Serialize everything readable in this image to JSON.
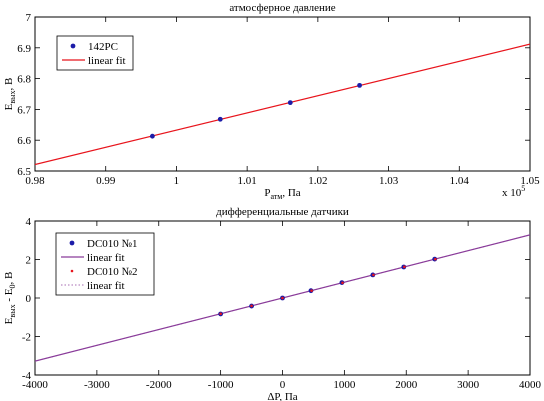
{
  "colors": {
    "fit_red": "#e8141c",
    "fit_purple": "#8a3c9a",
    "marker_navy": "#1c1ca8",
    "marker_red": "#e8141c",
    "axis": "#000000",
    "background": "#ffffff"
  },
  "chart_data": [
    {
      "type": "scatter",
      "title": "атмосферное давление",
      "xlabel": {
        "main": "P",
        "sub": "атм",
        "rest": ", Па"
      },
      "ylabel": {
        "main": "E",
        "sub": "вых",
        "rest": ", В"
      },
      "xlim": [
        0.98,
        1.05
      ],
      "ylim": [
        6.5,
        7.0
      ],
      "x_ticks": [
        0.98,
        0.99,
        1.0,
        1.01,
        1.02,
        1.03,
        1.04,
        1.05
      ],
      "x_tick_labels": [
        "0.98",
        "0.99",
        "1",
        "1.01",
        "1.02",
        "1.03",
        "1.04",
        "1.05"
      ],
      "y_ticks": [
        6.5,
        6.6,
        6.7,
        6.8,
        6.9,
        7.0
      ],
      "y_tick_labels": [
        "6.5",
        "6.6",
        "6.7",
        "6.8",
        "6.9",
        "7"
      ],
      "x_multiplier": {
        "base": "x 10",
        "exp": "5"
      },
      "grid": false,
      "legend_position": "top-left",
      "series": [
        {
          "name": "142PC",
          "kind": "markers",
          "color": "#1c1ca8",
          "points": [
            [
              0.9966,
              6.613
            ],
            [
              1.0062,
              6.668
            ],
            [
              1.0161,
              6.722
            ],
            [
              1.0259,
              6.778
            ]
          ]
        },
        {
          "name": "linear fit",
          "kind": "line",
          "color": "#e8141c",
          "points": [
            [
              0.98,
              6.521
            ],
            [
              1.05,
              6.912
            ]
          ]
        }
      ]
    },
    {
      "type": "scatter",
      "title": "дифференциальные датчики",
      "xlabel": {
        "main": "ΔP, Па"
      },
      "ylabel": {
        "main": "E",
        "sub": "вых",
        "mid": " - E",
        "sub2": "0",
        "rest": ", В"
      },
      "xlim": [
        -4000,
        4000
      ],
      "ylim": [
        -4,
        4
      ],
      "x_ticks": [
        -4000,
        -3000,
        -2000,
        -1000,
        0,
        1000,
        2000,
        3000,
        4000
      ],
      "x_tick_labels": [
        "-4000",
        "-3000",
        "-2000",
        "-1000",
        "0",
        "1000",
        "2000",
        "3000",
        "4000"
      ],
      "y_ticks": [
        -4,
        -2,
        0,
        2,
        4
      ],
      "y_tick_labels": [
        "-4",
        "-2",
        "0",
        "2",
        "4"
      ],
      "grid": false,
      "legend_position": "top-left",
      "series": [
        {
          "name": "DC010 №1",
          "kind": "markers",
          "color": "#1c1ca8",
          "points": [
            [
              -1000,
              -0.83
            ],
            [
              -500,
              -0.42
            ],
            [
              0,
              0.0
            ],
            [
              460,
              0.38
            ],
            [
              960,
              0.8
            ],
            [
              1460,
              1.2
            ],
            [
              1960,
              1.61
            ],
            [
              2460,
              2.02
            ]
          ]
        },
        {
          "name": "linear fit",
          "kind": "line",
          "color": "#8a3c9a",
          "points": [
            [
              -4000,
              -3.28
            ],
            [
              4000,
              3.28
            ]
          ]
        },
        {
          "name": "DC010 №2",
          "kind": "markers-small",
          "color": "#e8141c",
          "points": [
            [
              -1000,
              -0.82
            ],
            [
              -500,
              -0.41
            ],
            [
              0,
              0.0
            ],
            [
              470,
              0.38
            ],
            [
              970,
              0.79
            ],
            [
              1470,
              1.2
            ],
            [
              1970,
              1.62
            ],
            [
              2470,
              2.02
            ]
          ]
        },
        {
          "name": "linear fit",
          "kind": "dotted-line",
          "color": "#8a3c9a",
          "points": [
            [
              -4000,
              -3.28
            ],
            [
              4000,
              3.28
            ]
          ]
        }
      ]
    }
  ]
}
